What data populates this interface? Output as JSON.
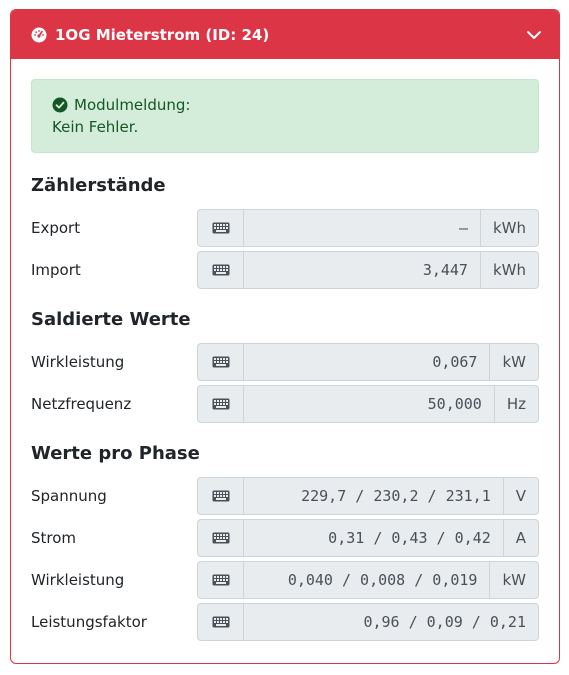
{
  "header": {
    "title": "1OG Mieterstrom (ID: 24)",
    "title_icon": "tachometer-icon",
    "toggle_icon": "chevron-down-icon"
  },
  "alert": {
    "title": "Modulmeldung:",
    "message": "Kein Fehler.",
    "icon": "check-circle-icon"
  },
  "sections": {
    "meter": {
      "title": "Zählerstände",
      "rows": [
        {
          "label": "Export",
          "value": "–",
          "unit": "kWh"
        },
        {
          "label": "Import",
          "value": "3,447",
          "unit": "kWh"
        }
      ]
    },
    "balanced": {
      "title": "Saldierte Werte",
      "rows": [
        {
          "label": "Wirkleistung",
          "value": "0,067",
          "unit": "kW"
        },
        {
          "label": "Netzfrequenz",
          "value": "50,000",
          "unit": "Hz"
        }
      ]
    },
    "phase": {
      "title": "Werte pro Phase",
      "rows": [
        {
          "label": "Spannung",
          "value": "229,7 / 230,2 / 231,1",
          "unit": "V"
        },
        {
          "label": "Strom",
          "value": "0,31 / 0,43 / 0,42",
          "unit": "A"
        },
        {
          "label": "Wirkleistung",
          "value": "0,040 / 0,008 / 0,019",
          "unit": "kW"
        },
        {
          "label": "Leistungsfaktor",
          "value": "0,96 / 0,09 / 0,21",
          "unit": ""
        }
      ]
    }
  },
  "colors": {
    "header": "#dc3545",
    "alert_bg": "#d4edda",
    "alert_text": "#155724",
    "input_bg": "#e9ecef"
  }
}
